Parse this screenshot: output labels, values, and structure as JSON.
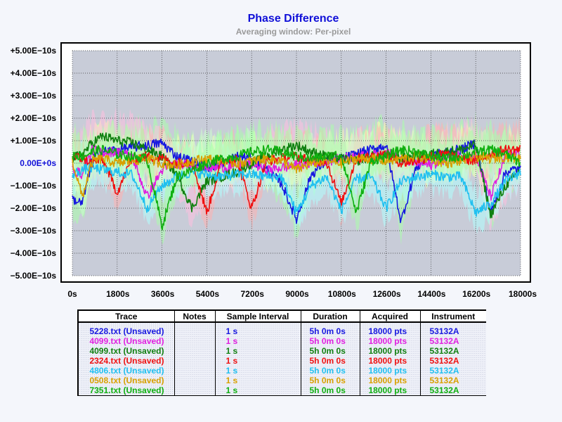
{
  "chart_data": {
    "type": "line",
    "title": "Phase Difference",
    "subtitle": "Averaging window: Per-pixel",
    "xlabel": "",
    "ylabel": "",
    "xlim": [
      0,
      18000
    ],
    "ylim": [
      -5e-10,
      5e-10
    ],
    "x_ticks": [
      "0s",
      "1800s",
      "3600s",
      "5400s",
      "7200s",
      "9000s",
      "10800s",
      "12600s",
      "14400s",
      "16200s",
      "18000s"
    ],
    "y_ticks": [
      "+5.00E−10s",
      "+4.00E−10s",
      "+3.00E−10s",
      "+2.00E−10s",
      "+1.00E−10s",
      "0.00E+0s",
      "−1.00E−10s",
      "−2.00E−10s",
      "−3.00E−10s",
      "−4.00E−10s",
      "−5.00E−10s"
    ],
    "grid": true,
    "plot_background": "#c8ccd8",
    "series": [
      {
        "name": "5228.txt (Unsaved)",
        "color": "#1818e0",
        "x": [
          0,
          400,
          800,
          1200,
          1800,
          2400,
          3000,
          3600,
          4200,
          4800,
          5400,
          6000,
          6600,
          7200,
          7800,
          8400,
          9000,
          9600,
          10200,
          10800,
          11400,
          12000,
          12600,
          13200,
          13800,
          14400,
          15000,
          15600,
          16200,
          16800,
          17400,
          18000
        ],
        "y": [
          -1.6e-10,
          -1.8e-10,
          2e-11,
          5e-11,
          6e-11,
          7e-11,
          8e-11,
          9e-11,
          3e-11,
          1e-11,
          -2e-11,
          0.0,
          3e-11,
          2e-11,
          -3e-11,
          -9e-11,
          -2.5e-10,
          -5e-11,
          1e-11,
          2e-11,
          4e-11,
          6e-11,
          8e-11,
          -2.6e-10,
          -2e-11,
          3e-11,
          5e-11,
          6e-11,
          9e-11,
          -2.2e-10,
          -4e-11,
          -2e-11
        ]
      },
      {
        "name": "4099.txt (Unsaved)",
        "color": "#e020e0",
        "x": [
          0,
          400,
          800,
          1200,
          1800,
          2400,
          3000,
          3600,
          4200,
          4800,
          5400,
          6000,
          6600,
          7200,
          7800,
          8400,
          9000,
          9600,
          10200,
          10800,
          11400,
          12000,
          12600,
          13200,
          13800,
          14400,
          15000,
          15600,
          16200,
          16800,
          17400,
          18000
        ],
        "y": [
          -3e-11,
          -5e-11,
          6e-11,
          5e-11,
          5e-11,
          3e-11,
          -1.5e-10,
          -3e-11,
          0.0,
          -1e-11,
          -2e-11,
          -2e-11,
          -1e-11,
          0.0,
          -3e-11,
          -2e-11,
          -1e-11,
          0.0,
          1e-11,
          2e-11,
          3e-11,
          3e-11,
          5e-11,
          2e-11,
          0.0,
          -1e-11,
          2e-11,
          4e-11,
          3e-11,
          -1.5e-10,
          3e-11,
          5e-11
        ]
      },
      {
        "name": "4099.txt (Unsaved)",
        "color": "#108010",
        "x": [
          0,
          400,
          800,
          1200,
          1800,
          2400,
          3000,
          3600,
          4200,
          4800,
          5400,
          6000,
          6600,
          7200,
          7800,
          8400,
          9000,
          9600,
          10200,
          10800,
          11400,
          12000,
          12600,
          13200,
          13800,
          14400,
          15000,
          15600,
          16200,
          16800,
          17400,
          18000
        ],
        "y": [
          2e-11,
          4e-11,
          9e-11,
          1.2e-10,
          1e-10,
          9e-11,
          6e-11,
          3e-11,
          -5e-11,
          -2e-10,
          -8e-11,
          -6e-11,
          -4e-11,
          0.0,
          3e-11,
          6e-11,
          8e-11,
          5e-11,
          3e-11,
          2e-11,
          1e-11,
          3e-11,
          3e-11,
          2e-11,
          3e-11,
          4e-11,
          5e-11,
          6e-11,
          8e-11,
          -2.3e-10,
          -1e-10,
          -3e-11
        ]
      },
      {
        "name": "2324.txt (Unsaved)",
        "color": "#f01010",
        "x": [
          0,
          400,
          800,
          1200,
          1800,
          2400,
          3000,
          3600,
          4200,
          4800,
          5400,
          6000,
          6600,
          7200,
          7800,
          8400,
          9000,
          9600,
          10200,
          10800,
          11400,
          12000,
          12600,
          13200,
          13800,
          14400,
          15000,
          15600,
          16200,
          16800,
          17400,
          18000
        ],
        "y": [
          3e-11,
          2e-11,
          0.0,
          2e-11,
          -1.3e-10,
          2e-11,
          3e-11,
          2e-11,
          0.0,
          1e-11,
          -2.2e-10,
          1e-11,
          2e-11,
          -2e-10,
          1e-11,
          2e-11,
          3e-11,
          1e-11,
          1e-11,
          -1.8e-10,
          2e-11,
          3e-11,
          4e-11,
          0.0,
          1e-11,
          3e-11,
          4e-11,
          2e-11,
          1e-11,
          4e-11,
          6e-11,
          6e-11
        ]
      },
      {
        "name": "4806.txt (Unsaved)",
        "color": "#20c0f0",
        "x": [
          0,
          400,
          800,
          1200,
          1800,
          2400,
          3000,
          3600,
          4200,
          4800,
          5400,
          6000,
          6600,
          7200,
          7800,
          8400,
          9000,
          9600,
          10200,
          10800,
          11400,
          12000,
          12600,
          13200,
          13800,
          14400,
          15000,
          15600,
          16200,
          16800,
          17400,
          18000
        ],
        "y": [
          -5e-11,
          -3e-11,
          -2e-11,
          -3e-11,
          -4e-11,
          -5e-11,
          -2e-10,
          -1e-10,
          -6e-11,
          -4e-11,
          -5e-11,
          -6e-11,
          -5e-11,
          -5e-11,
          -6e-11,
          -6e-11,
          -2.2e-10,
          -1e-10,
          -6e-11,
          -2.1e-10,
          -7e-11,
          -6e-11,
          -2e-10,
          -8e-11,
          -6e-11,
          -5e-11,
          -6e-11,
          -6e-11,
          -2.2e-10,
          -1.8e-10,
          -8e-11,
          -4e-11
        ]
      },
      {
        "name": "0508.txt (Unsaved)",
        "color": "#d8a000",
        "x": [
          0,
          400,
          800,
          1200,
          1800,
          2400,
          3000,
          3600,
          4200,
          4800,
          5400,
          6000,
          6600,
          7200,
          7800,
          8400,
          9000,
          9600,
          10200,
          10800,
          11400,
          12000,
          12600,
          13200,
          13800,
          14400,
          15000,
          15600,
          16200,
          16800,
          17400,
          18000
        ],
        "y": [
          1e-11,
          -1.5e-10,
          1e-11,
          2e-11,
          0.0,
          1e-11,
          2e-11,
          0.0,
          -1e-11,
          1e-11,
          2e-11,
          1e-11,
          0.0,
          1e-11,
          2e-11,
          1e-11,
          -3e-11,
          0.0,
          1e-11,
          0.0,
          2e-11,
          2e-11,
          1e-11,
          2e-11,
          3e-11,
          2e-11,
          0.0,
          1e-11,
          3e-11,
          2e-11,
          3e-11,
          2e-11
        ]
      },
      {
        "name": "7351.txt (Unsaved)",
        "color": "#10b010",
        "x": [
          0,
          400,
          800,
          1200,
          1800,
          2400,
          3000,
          3600,
          4200,
          4800,
          5400,
          6000,
          6600,
          7200,
          7800,
          8400,
          9000,
          9600,
          10200,
          10800,
          11400,
          12000,
          12600,
          13200,
          13800,
          14400,
          15000,
          15600,
          16200,
          16800,
          17400,
          18000
        ],
        "y": [
          4e-11,
          3e-11,
          5e-11,
          6e-11,
          4e-11,
          3e-11,
          2e-11,
          -2.8e-10,
          -6e-11,
          -3e-11,
          0.0,
          2e-11,
          3e-11,
          5e-11,
          6e-11,
          5e-11,
          3e-11,
          2e-11,
          3e-11,
          4e-11,
          -2.2e-10,
          1e-11,
          3e-11,
          6e-11,
          5e-11,
          3e-11,
          2e-11,
          3e-11,
          5e-11,
          6e-11,
          4e-11,
          0.0
        ]
      }
    ],
    "envelope_colors": [
      "#aaffaa",
      "#ffffaa",
      "#ffc0e0",
      "#ffb0b0",
      "#b0ffff",
      "#ccffcc"
    ]
  },
  "legend_table": {
    "headers": [
      "Trace",
      "Notes",
      "Sample Interval",
      "Duration",
      "Acquired",
      "Instrument"
    ],
    "rows": [
      {
        "trace": "5228.txt (Unsaved)",
        "notes": "",
        "interval": "1 s",
        "duration": "5h 0m 0s",
        "acquired": "18000 pts",
        "instrument": "53132A",
        "color": "#1818e0"
      },
      {
        "trace": "4099.txt (Unsaved)",
        "notes": "",
        "interval": "1 s",
        "duration": "5h 0m 0s",
        "acquired": "18000 pts",
        "instrument": "53132A",
        "color": "#e020e0"
      },
      {
        "trace": "4099.txt (Unsaved)",
        "notes": "",
        "interval": "1 s",
        "duration": "5h 0m 0s",
        "acquired": "18000 pts",
        "instrument": "53132A",
        "color": "#108010"
      },
      {
        "trace": "2324.txt (Unsaved)",
        "notes": "",
        "interval": "1 s",
        "duration": "5h 0m 0s",
        "acquired": "18000 pts",
        "instrument": "53132A",
        "color": "#f01010"
      },
      {
        "trace": "4806.txt (Unsaved)",
        "notes": "",
        "interval": "1 s",
        "duration": "5h 0m 0s",
        "acquired": "18000 pts",
        "instrument": "53132A",
        "color": "#20c0f0"
      },
      {
        "trace": "0508.txt (Unsaved)",
        "notes": "",
        "interval": "1 s",
        "duration": "5h 0m 0s",
        "acquired": "18000 pts",
        "instrument": "53132A",
        "color": "#d8a000"
      },
      {
        "trace": "7351.txt (Unsaved)",
        "notes": "",
        "interval": "1 s",
        "duration": "5h 0m 0s",
        "acquired": "18000 pts",
        "instrument": "53132A",
        "color": "#10b010"
      }
    ]
  }
}
